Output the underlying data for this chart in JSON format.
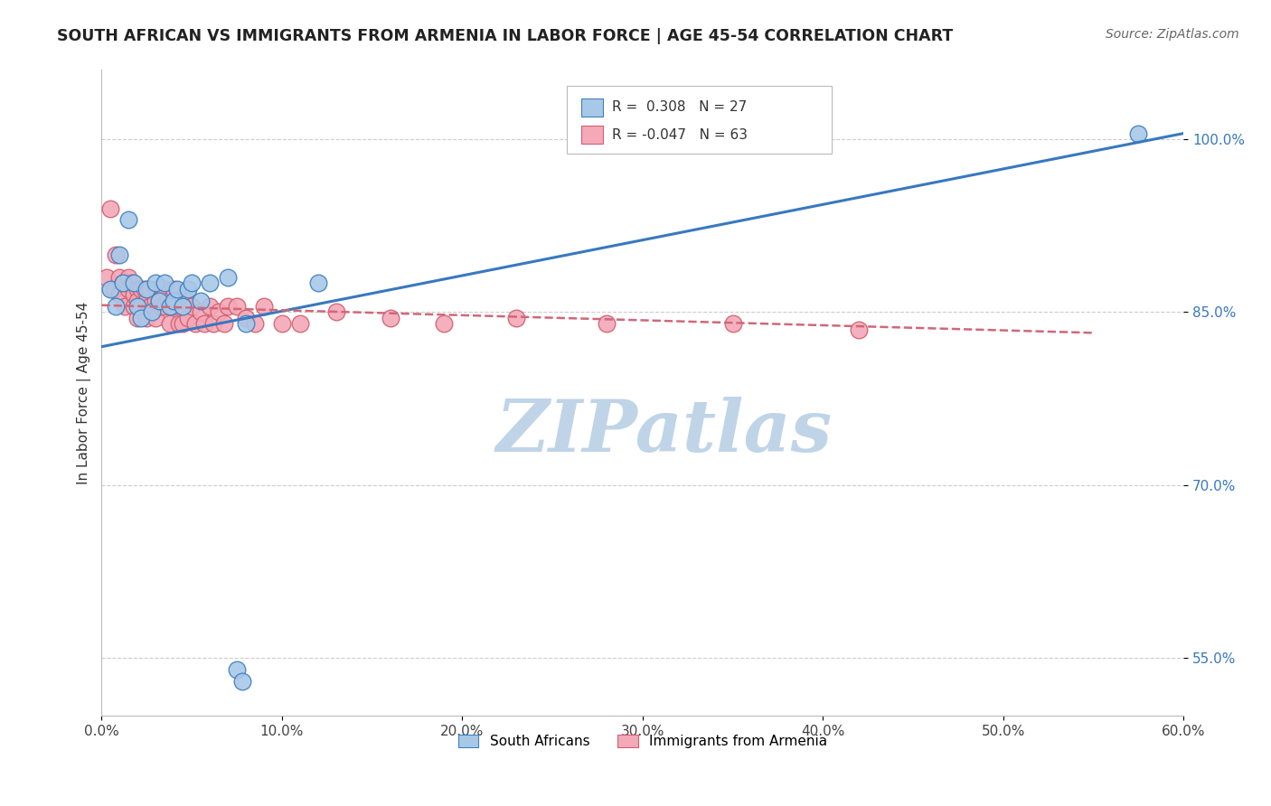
{
  "title": "SOUTH AFRICAN VS IMMIGRANTS FROM ARMENIA IN LABOR FORCE | AGE 45-54 CORRELATION CHART",
  "source": "Source: ZipAtlas.com",
  "ylabel": "In Labor Force | Age 45-54",
  "xlim": [
    0.0,
    0.6
  ],
  "ylim": [
    0.5,
    1.06
  ],
  "yticks": [
    0.55,
    0.7,
    0.85,
    1.0
  ],
  "ytick_labels": [
    "55.0%",
    "70.0%",
    "85.0%",
    "100.0%"
  ],
  "xticks": [
    0.0,
    0.1,
    0.2,
    0.3,
    0.4,
    0.5,
    0.6
  ],
  "xtick_labels": [
    "0.0%",
    "10.0%",
    "20.0%",
    "30.0%",
    "40.0%",
    "50.0%",
    "60.0%"
  ],
  "blue_R": 0.308,
  "blue_N": 27,
  "pink_R": -0.047,
  "pink_N": 63,
  "blue_color": "#a8c8e8",
  "pink_color": "#f4a8b8",
  "blue_edge_color": "#4080c0",
  "pink_edge_color": "#d06070",
  "blue_line_color": "#3878c0",
  "pink_line_color": "#d06878",
  "background_color": "#ffffff",
  "watermark": "ZIPatlas",
  "watermark_color": "#c0d4e8",
  "legend_label_blue": "South Africans",
  "legend_label_pink": "Immigrants from Armenia",
  "blue_scatter_x": [
    0.005,
    0.008,
    0.01,
    0.012,
    0.015,
    0.018,
    0.02,
    0.022,
    0.025,
    0.028,
    0.03,
    0.032,
    0.035,
    0.038,
    0.04,
    0.042,
    0.045,
    0.048,
    0.05,
    0.055,
    0.06,
    0.07,
    0.08,
    0.12,
    0.075,
    0.078,
    0.575
  ],
  "blue_scatter_y": [
    0.87,
    0.855,
    0.9,
    0.875,
    0.93,
    0.875,
    0.855,
    0.845,
    0.87,
    0.85,
    0.875,
    0.86,
    0.875,
    0.855,
    0.86,
    0.87,
    0.855,
    0.87,
    0.875,
    0.86,
    0.875,
    0.88,
    0.84,
    0.875,
    0.54,
    0.53,
    1.005
  ],
  "pink_scatter_x": [
    0.003,
    0.005,
    0.007,
    0.008,
    0.01,
    0.01,
    0.012,
    0.013,
    0.015,
    0.015,
    0.017,
    0.018,
    0.018,
    0.02,
    0.02,
    0.02,
    0.022,
    0.022,
    0.024,
    0.025,
    0.025,
    0.027,
    0.027,
    0.028,
    0.03,
    0.03,
    0.03,
    0.032,
    0.033,
    0.035,
    0.035,
    0.037,
    0.038,
    0.04,
    0.04,
    0.042,
    0.043,
    0.045,
    0.045,
    0.047,
    0.048,
    0.05,
    0.052,
    0.055,
    0.057,
    0.06,
    0.062,
    0.065,
    0.068,
    0.07,
    0.075,
    0.08,
    0.085,
    0.09,
    0.1,
    0.11,
    0.13,
    0.16,
    0.19,
    0.23,
    0.28,
    0.35,
    0.42
  ],
  "pink_scatter_y": [
    0.88,
    0.94,
    0.87,
    0.9,
    0.88,
    0.865,
    0.875,
    0.855,
    0.88,
    0.87,
    0.875,
    0.865,
    0.855,
    0.87,
    0.86,
    0.845,
    0.87,
    0.855,
    0.87,
    0.86,
    0.845,
    0.87,
    0.855,
    0.85,
    0.87,
    0.86,
    0.845,
    0.86,
    0.855,
    0.87,
    0.855,
    0.86,
    0.84,
    0.87,
    0.855,
    0.86,
    0.84,
    0.855,
    0.84,
    0.86,
    0.845,
    0.855,
    0.84,
    0.85,
    0.84,
    0.855,
    0.84,
    0.85,
    0.84,
    0.855,
    0.855,
    0.845,
    0.84,
    0.855,
    0.84,
    0.84,
    0.85,
    0.845,
    0.84,
    0.845,
    0.84,
    0.84,
    0.835
  ],
  "blue_trendline_x": [
    0.0,
    0.6
  ],
  "blue_trendline_y": [
    0.82,
    1.005
  ],
  "pink_trendline_x": [
    0.0,
    0.55
  ],
  "pink_trendline_y": [
    0.856,
    0.832
  ]
}
